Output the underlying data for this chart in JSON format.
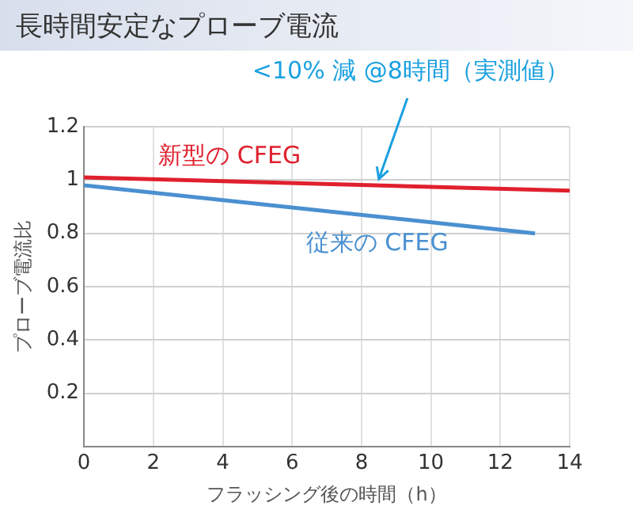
{
  "chart_data": {
    "type": "line",
    "title": "長時間安定なプローブ電流",
    "xlabel": "フラッシング後の時間（h）",
    "ylabel": "プローブ電流比",
    "series": [
      {
        "name": "新型の CFEG",
        "color": "#e0202e",
        "x": [
          0,
          14
        ],
        "values": [
          1.01,
          0.96
        ]
      },
      {
        "name": "従来の CFEG",
        "color": "#4a90d0",
        "x": [
          0,
          13
        ],
        "values": [
          0.98,
          0.8
        ]
      }
    ],
    "xlim": [
      0,
      14
    ],
    "xticks": [
      0,
      2,
      4,
      6,
      8,
      10,
      12,
      14
    ],
    "ylim": [
      0,
      1.2
    ],
    "yticks": [
      {
        "value": 0,
        "label": null
      },
      0.2,
      0.4,
      0.6,
      0.8,
      1,
      1.2
    ],
    "grid": true,
    "legend": false,
    "marker": "none",
    "line_style": "solid",
    "annotations": [
      {
        "text": "<10% 減 @8時間（実測値）",
        "x": 8.5,
        "y": 0.98
      }
    ]
  }
}
